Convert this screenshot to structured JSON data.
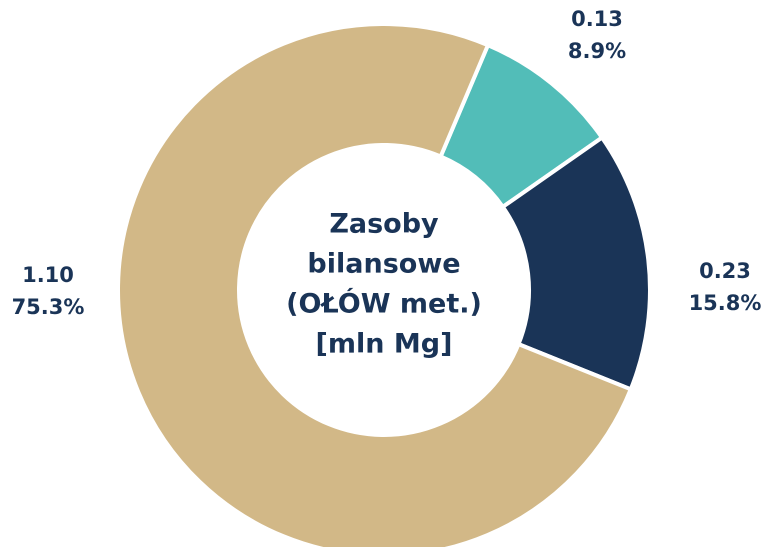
{
  "chart_data": {
    "type": "donut",
    "title": [
      "Zasoby",
      "bilansowe",
      "(OŁÓW met.)",
      "[mln Mg]"
    ],
    "categories": [
      null,
      null,
      null
    ],
    "values": [
      0.13,
      0.23,
      1.1
    ],
    "value_labels": [
      "0.13",
      "0.23",
      "1.10"
    ],
    "percents": [
      8.9,
      15.8,
      75.3
    ],
    "percent_labels": [
      "8.9%",
      "15.8%",
      "75.3%"
    ],
    "colors": [
      "#52bdb8",
      "#1a3457",
      "#d2b887"
    ]
  }
}
